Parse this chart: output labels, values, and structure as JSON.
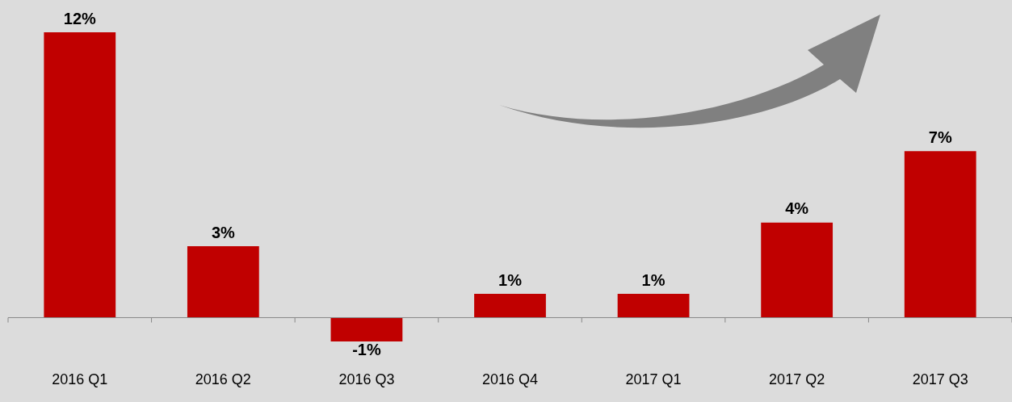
{
  "chart_data": {
    "type": "bar",
    "categories": [
      "2016 Q1",
      "2016 Q2",
      "2016 Q3",
      "2016 Q4",
      "2017 Q1",
      "2017 Q2",
      "2017 Q3"
    ],
    "values": [
      12,
      3,
      -1,
      1,
      1,
      4,
      7
    ],
    "color": "#c00000",
    "value_labels": [
      "12%",
      "3%",
      "-1%",
      "1%",
      "1%",
      "4%",
      "7%"
    ],
    "grid": false,
    "legend": false
  }
}
